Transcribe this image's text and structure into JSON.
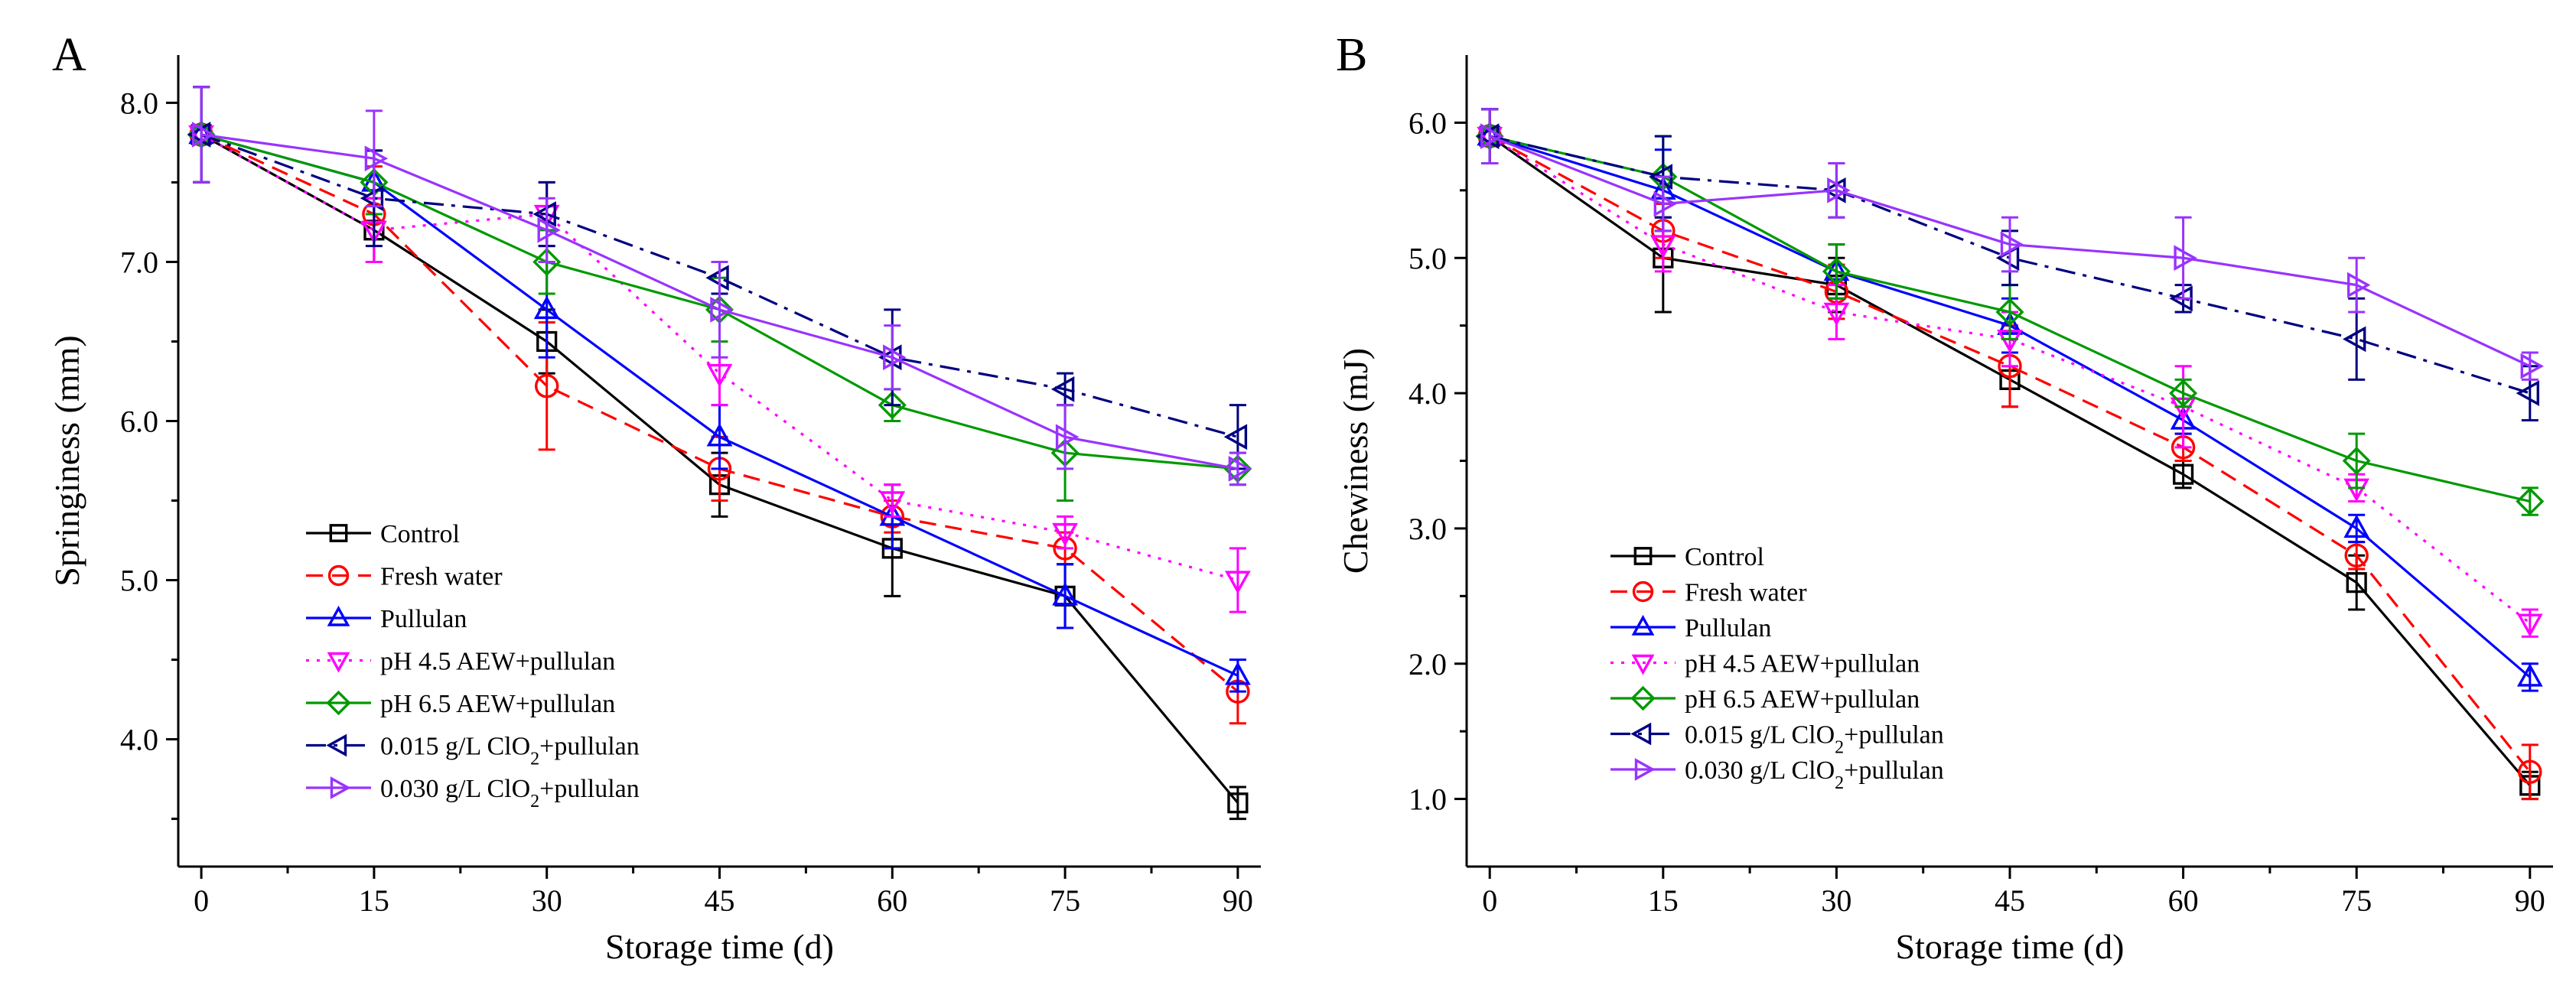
{
  "chart_data": [
    {
      "type": "line",
      "panel_label": "A",
      "xlabel": "Storage time (d)",
      "ylabel": "Springiness (mm)",
      "x": [
        0,
        15,
        30,
        45,
        60,
        75,
        90
      ],
      "x_tick_labels": [
        "0",
        "15",
        "30",
        "45",
        "60",
        "75",
        "90"
      ],
      "xlim": [
        -2,
        92
      ],
      "ylim": [
        3.2,
        8.3
      ],
      "y_ticks": [
        4.0,
        5.0,
        6.0,
        7.0,
        8.0
      ],
      "y_tick_labels": [
        "4.0",
        "5.0",
        "6.0",
        "7.0",
        "8.0"
      ],
      "grid": false,
      "legend_position": "lower-left",
      "series": [
        {
          "name": "Control",
          "name_main": "Control",
          "name_sub": "",
          "name_tail": "",
          "color": "#000000",
          "dash": "solid",
          "marker": "square",
          "values": [
            7.8,
            7.2,
            6.5,
            5.6,
            5.2,
            4.9,
            3.6
          ],
          "errors": [
            0.3,
            0.2,
            0.2,
            0.2,
            0.3,
            0.2,
            0.1
          ]
        },
        {
          "name": "Fresh water",
          "name_main": "Fresh water",
          "name_sub": "",
          "name_tail": "",
          "color": "#ff0000",
          "dash": "dash",
          "marker": "circle",
          "values": [
            7.8,
            7.3,
            6.22,
            5.7,
            5.4,
            5.2,
            4.3
          ],
          "errors": [
            0.3,
            0.3,
            0.4,
            0.2,
            0.1,
            0.1,
            0.2
          ]
        },
        {
          "name": "Pullulan",
          "name_main": "Pullulan",
          "name_sub": "",
          "name_tail": "",
          "color": "#0000ff",
          "dash": "solid",
          "marker": "triangle-up",
          "values": [
            7.8,
            7.5,
            6.7,
            5.9,
            5.4,
            4.9,
            4.4
          ],
          "errors": [
            0.3,
            0.2,
            0.3,
            0.2,
            0.2,
            0.2,
            0.1
          ]
        },
        {
          "name": "pH 4.5 AEW+pullulan",
          "name_main": "pH 4.5 AEW+pullulan",
          "name_sub": "",
          "name_tail": "",
          "color": "#ff00ff",
          "dash": "dot",
          "marker": "triangle-down",
          "values": [
            7.8,
            7.2,
            7.3,
            6.3,
            5.5,
            5.3,
            5.0
          ],
          "errors": [
            0.3,
            0.2,
            0.2,
            0.2,
            0.1,
            0.1,
            0.2
          ]
        },
        {
          "name": "pH 6.5 AEW+pullulan",
          "name_main": "pH 6.5 AEW+pullulan",
          "name_sub": "",
          "name_tail": "",
          "color": "#009900",
          "dash": "solid",
          "marker": "diamond",
          "values": [
            7.8,
            7.5,
            7.0,
            6.7,
            6.1,
            5.8,
            5.7
          ],
          "errors": [
            0.3,
            0.2,
            0.2,
            0.2,
            0.1,
            0.3,
            0.1
          ]
        },
        {
          "name": "0.015 g/L ClO2+pullulan",
          "name_main": "0.015 g/L ClO",
          "name_sub": "2",
          "name_tail": "+pullulan",
          "color": "#000080",
          "dash": "dashdot",
          "marker": "triangle-left",
          "values": [
            7.8,
            7.4,
            7.3,
            6.9,
            6.4,
            6.2,
            5.9
          ],
          "errors": [
            0.3,
            0.3,
            0.2,
            0.1,
            0.3,
            0.1,
            0.2
          ]
        },
        {
          "name": "0.030 g/L ClO2+pullulan",
          "name_main": "0.030 g/L ClO",
          "name_sub": "2",
          "name_tail": "+pullulan",
          "color": "#9933ff",
          "dash": "solid",
          "marker": "triangle-right",
          "values": [
            7.8,
            7.65,
            7.2,
            6.7,
            6.4,
            5.9,
            5.7
          ],
          "errors": [
            0.3,
            0.3,
            0.2,
            0.3,
            0.2,
            0.2,
            0.1
          ]
        }
      ]
    },
    {
      "type": "line",
      "panel_label": "B",
      "xlabel": "Storage time (d)",
      "ylabel": "Chewiness (mJ)",
      "x": [
        0,
        15,
        30,
        45,
        60,
        75,
        90
      ],
      "x_tick_labels": [
        "0",
        "15",
        "30",
        "45",
        "60",
        "75",
        "90"
      ],
      "xlim": [
        -2,
        92
      ],
      "ylim": [
        0.5,
        6.5
      ],
      "y_ticks": [
        1.0,
        2.0,
        3.0,
        4.0,
        5.0,
        6.0
      ],
      "y_tick_labels": [
        "1.0",
        "2.0",
        "3.0",
        "4.0",
        "5.0",
        "6.0"
      ],
      "grid": false,
      "legend_position": "lower-left",
      "series": [
        {
          "name": "Control",
          "name_main": "Control",
          "name_sub": "",
          "name_tail": "",
          "color": "#000000",
          "dash": "solid",
          "marker": "square",
          "values": [
            5.9,
            5.0,
            4.8,
            4.1,
            3.4,
            2.6,
            1.1
          ],
          "errors": [
            0.2,
            0.4,
            0.2,
            0.2,
            0.1,
            0.2,
            0.1
          ]
        },
        {
          "name": "Fresh water",
          "name_main": "Fresh water",
          "name_sub": "",
          "name_tail": "",
          "color": "#ff0000",
          "dash": "dash",
          "marker": "circle",
          "values": [
            5.9,
            5.2,
            4.75,
            4.2,
            3.6,
            2.8,
            1.2
          ],
          "errors": [
            0.2,
            0.2,
            0.2,
            0.3,
            0.1,
            0.1,
            0.2
          ]
        },
        {
          "name": "Pullulan",
          "name_main": "Pullulan",
          "name_sub": "",
          "name_tail": "",
          "color": "#0000ff",
          "dash": "solid",
          "marker": "triangle-up",
          "values": [
            5.9,
            5.5,
            4.9,
            4.5,
            3.8,
            3.0,
            1.9
          ],
          "errors": [
            0.2,
            0.3,
            0.2,
            0.2,
            0.1,
            0.1,
            0.1
          ]
        },
        {
          "name": "pH 4.5 AEW+pullulan",
          "name_main": "pH 4.5 AEW+pullulan",
          "name_sub": "",
          "name_tail": "",
          "color": "#ff00ff",
          "dash": "dot",
          "marker": "triangle-down",
          "values": [
            5.9,
            5.1,
            4.6,
            4.4,
            3.9,
            3.3,
            2.3
          ],
          "errors": [
            0.2,
            0.2,
            0.2,
            0.2,
            0.3,
            0.1,
            0.1
          ]
        },
        {
          "name": "pH 6.5 AEW+pullulan",
          "name_main": "pH 6.5 AEW+pullulan",
          "name_sub": "",
          "name_tail": "",
          "color": "#009900",
          "dash": "solid",
          "marker": "diamond",
          "values": [
            5.9,
            5.6,
            4.9,
            4.6,
            4.0,
            3.5,
            3.2
          ],
          "errors": [
            0.2,
            0.3,
            0.2,
            0.2,
            0.1,
            0.2,
            0.1
          ]
        },
        {
          "name": "0.015 g/L ClO2+pullulan",
          "name_main": "0.015 g/L ClO",
          "name_sub": "2",
          "name_tail": "+pullulan",
          "color": "#000080",
          "dash": "dashdot",
          "marker": "triangle-left",
          "values": [
            5.9,
            5.6,
            5.5,
            5.0,
            4.7,
            4.4,
            4.0
          ],
          "errors": [
            0.2,
            0.3,
            0.2,
            0.2,
            0.1,
            0.3,
            0.2
          ]
        },
        {
          "name": "0.030 g/L ClO2+pullulan",
          "name_main": "0.030 g/L ClO",
          "name_sub": "2",
          "name_tail": "+pullulan",
          "color": "#9933ff",
          "dash": "solid",
          "marker": "triangle-right",
          "values": [
            5.9,
            5.4,
            5.5,
            5.1,
            5.0,
            4.8,
            4.2
          ],
          "errors": [
            0.2,
            0.2,
            0.2,
            0.2,
            0.3,
            0.2,
            0.1
          ]
        }
      ]
    }
  ]
}
